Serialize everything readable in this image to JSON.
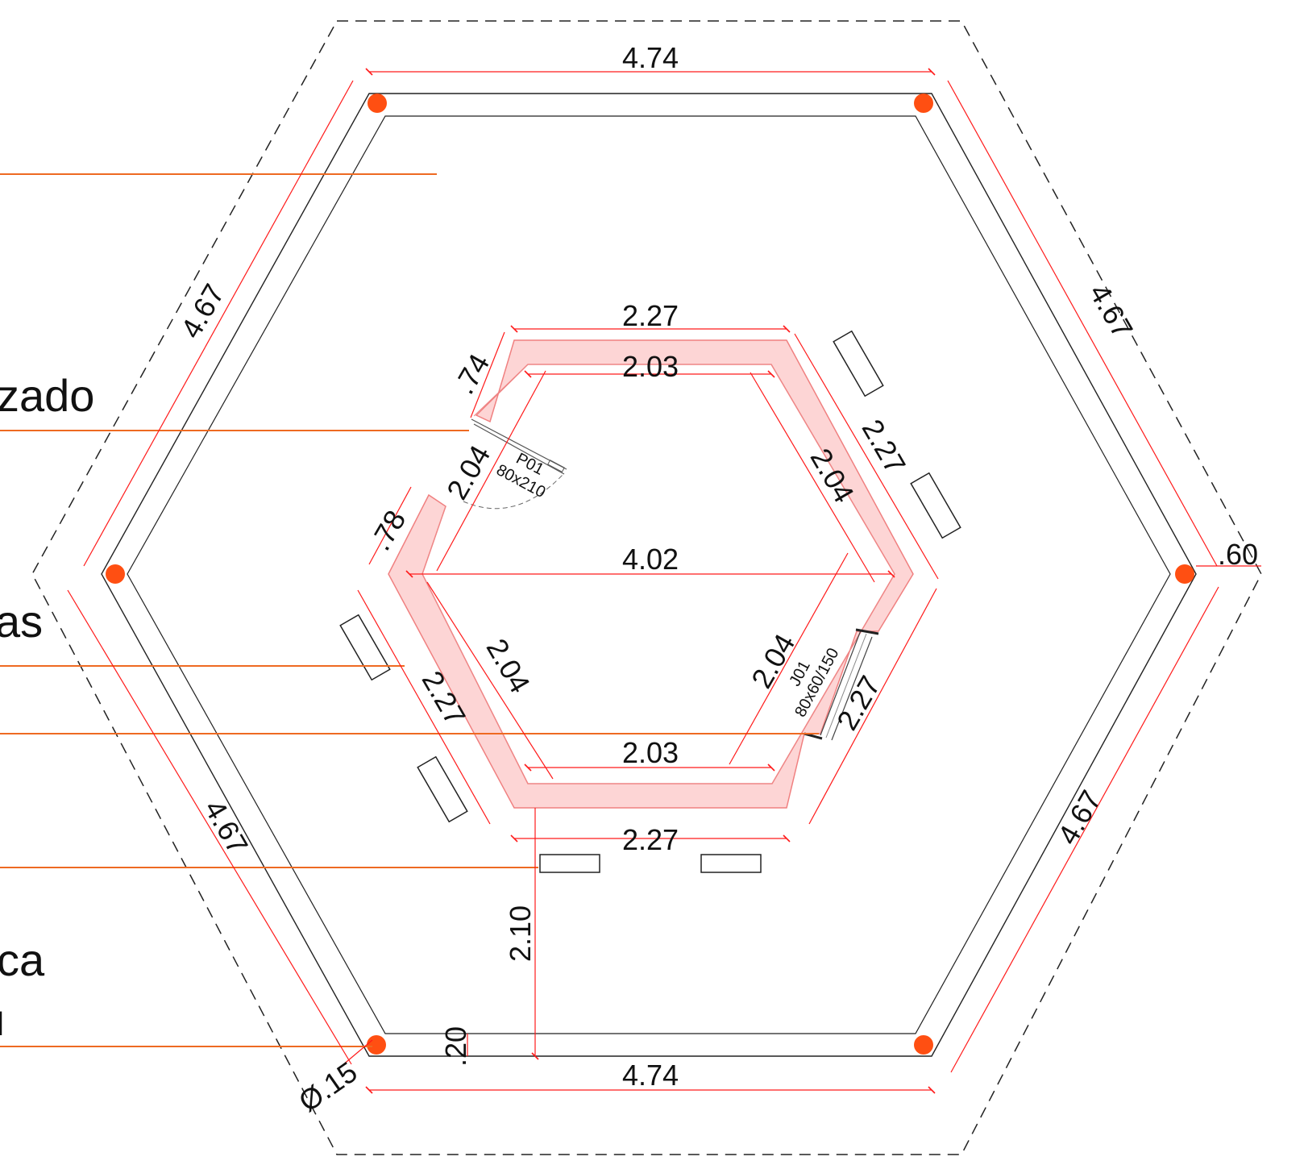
{
  "labels": {
    "zado": "zado",
    "as": "as",
    "ca": "ca",
    "frag": "ı"
  },
  "dimensions": {
    "outer_top": "4.74",
    "outer_bottom": "4.74",
    "outer_upper_left": "4.67",
    "outer_upper_right": "4.67",
    "outer_lower_left": "4.67",
    "outer_lower_right": "4.67",
    "offset_right": ".60",
    "inner_top_outer": "2.27",
    "inner_top_inner": "2.03",
    "inner_upper_right_outer": "2.27",
    "inner_upper_right_inner": "2.04",
    "inner_width": "4.02",
    "inner_lower_left_inner": "2.04",
    "inner_lower_left_outer": "2.27",
    "inner_lower_right_inner": "2.04",
    "inner_lower_right_outer": "2.27",
    "inner_bottom_inner": "2.03",
    "inner_bottom_outer": "2.27",
    "upper_left_short": ".74",
    "upper_left_door": "2.04",
    "upper_left_lower": ".78",
    "vertical_gap": "2.10",
    "wall_thickness": ".20",
    "column_diameter": "Ø.15"
  },
  "door": {
    "code": "P01",
    "size": "80x210"
  },
  "window": {
    "code": "J01",
    "size": "80x60/150"
  },
  "colors": {
    "dimension_lines": "#ff1a1a",
    "leader_lines": "#ee6a22",
    "columns": "#ff4f12",
    "inner_wall_fill": "#fdd5d5",
    "inner_wall_stroke": "#f08080"
  }
}
